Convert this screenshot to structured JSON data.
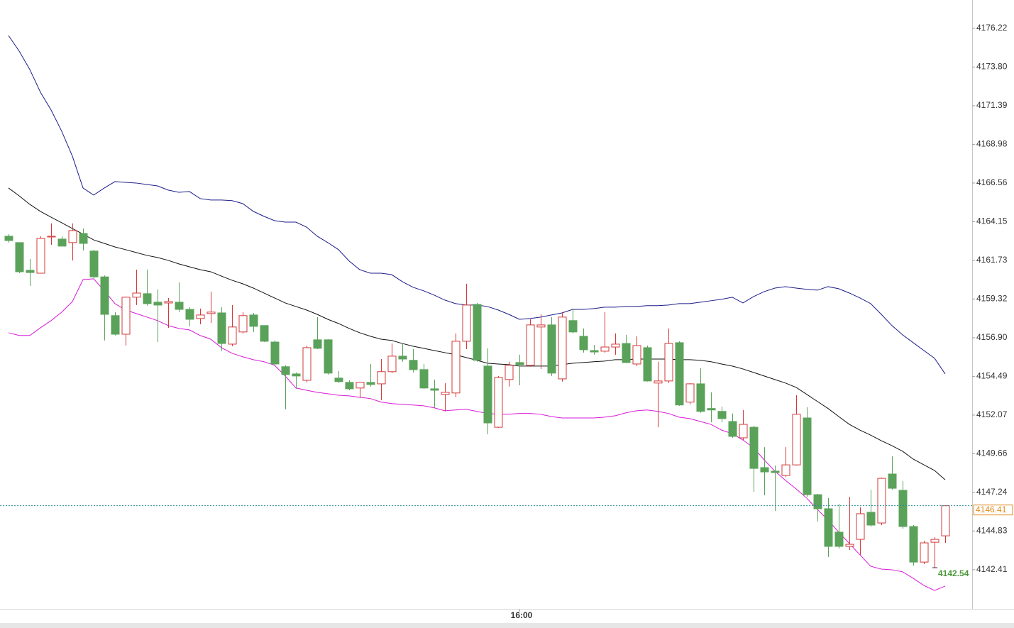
{
  "chart_data": {
    "type": "candlestick",
    "up_color": "#d23a3a",
    "down_color": "#5aa25a",
    "last_price_color": "#e08a1e",
    "last_line_color": "#2a8a9a",
    "low_label_color": "#4a9a3a",
    "ylim": [
      4139.97,
      4177.99
    ],
    "yticks": [
      4142.41,
      4144.83,
      4147.24,
      4149.66,
      4152.07,
      4154.49,
      {
        "value": 4156.9,
        "label": "4156.90"
      },
      4159.32,
      4161.73,
      4164.15,
      4166.56,
      4168.98,
      4171.39,
      {
        "value": 4173.8,
        "label": "4173.80"
      },
      4176.22
    ],
    "categories": [
      null,
      null,
      null,
      null,
      null,
      null,
      null,
      null,
      null,
      null,
      null,
      null,
      null,
      null,
      null,
      null,
      null,
      null,
      null,
      null,
      null,
      null,
      null,
      null,
      null,
      null,
      null,
      null,
      null,
      null,
      null,
      null,
      null,
      null,
      null,
      null,
      null,
      null,
      null,
      null,
      null,
      null,
      null,
      null,
      null,
      null,
      null,
      null,
      "16:00",
      null,
      null,
      null,
      null,
      null,
      null,
      null,
      null,
      null,
      null,
      null,
      null,
      null,
      null,
      null,
      null,
      null,
      null,
      null,
      null,
      null,
      null,
      null,
      null,
      null,
      null,
      null,
      null,
      null,
      null,
      null,
      null,
      null,
      null,
      null,
      null,
      null,
      null,
      null,
      null
    ],
    "open": [
      4163.24,
      4162.84,
      4161.11,
      4160.93,
      4163.19,
      4163.06,
      4162.84,
      4163.41,
      4162.31,
      4160.7,
      4158.28,
      4157.12,
      4159.43,
      4159.65,
      4159.12,
      4159.07,
      4159.12,
      4158.67,
      4158.1,
      4158.41,
      4158.45,
      4156.5,
      4157.26,
      4158.32,
      4157.66,
      4156.63,
      4155.09,
      4154.64,
      4154.24,
      4156.77,
      4156.77,
      4154.38,
      4154.11,
      4153.76,
      4154.11,
      4154.02,
      4154.78,
      4155.75,
      4155.49,
      4154.91,
      4153.71,
      4153.36,
      4153.45,
      4156.68,
      4158.98,
      4155.13,
      4151.31,
      4154.29,
      4155.35,
      4155.18,
      4157.57,
      4157.7,
      4154.33,
      4157.97,
      4156.99,
      4156.1,
      4156.06,
      4156.32,
      4156.54,
      4155.26,
      4156.28,
      4154.07,
      4154.2,
      4156.59,
      4152.88,
      4154.02,
      4152.48,
      4152.3,
      4151.67,
      4150.65,
      4151.31,
      4148.79,
      4148.57,
      4148.3,
      4148.96,
      4151.89,
      4147.1,
      4146.22,
      4144.76,
      4143.87,
      4144.31,
      4146.0,
      4145.33,
      4148.39,
      4147.37,
      4145.11,
      4142.89,
      4144.13,
      4144.53
    ],
    "high": [
      4163.37,
      4162.84,
      4161.82,
      4163.24,
      4164.04,
      4163.24,
      4164.04,
      4163.72,
      4162.4,
      4160.79,
      4158.5,
      4159.47,
      4161.15,
      4161.15,
      4159.92,
      4159.38,
      4160.36,
      4158.81,
      4158.72,
      4159.78,
      4158.81,
      4158.94,
      4158.5,
      4158.45,
      4157.66,
      4156.73,
      4155.18,
      4154.73,
      4156.41,
      4158.19,
      4156.81,
      4154.82,
      4154.24,
      4154.11,
      4155.26,
      4155.57,
      4156.54,
      4156.5,
      4156.19,
      4155.26,
      4154.29,
      4154.07,
      4157.17,
      4160.27,
      4159.07,
      4156.24,
      4154.51,
      4155.4,
      4155.84,
      4158.05,
      4158.36,
      4158.19,
      4158.5,
      4158.72,
      4157.48,
      4156.45,
      4158.5,
      4157.17,
      4157.08,
      4156.99,
      4156.41,
      4155.4,
      4157.48,
      4156.68,
      4154.07,
      4155.0,
      4153.49,
      4152.61,
      4152.17,
      4152.39,
      4151.4,
      4150.07,
      4148.92,
      4150.07,
      4153.31,
      4152.56,
      4147.15,
      4146.88,
      4146.53,
      4146.97,
      4146.31,
      4147.41,
      4148.17,
      4149.49,
      4147.94,
      4145.2,
      4144.22,
      4144.44,
      4146.44
    ],
    "low": [
      4162.84,
      4160.93,
      4160.14,
      4160.93,
      4162.7,
      4162.62,
      4161.72,
      4162.35,
      4160.62,
      4156.73,
      4157.04,
      4156.41,
      4158.94,
      4158.9,
      4156.63,
      4157.52,
      4158.5,
      4157.61,
      4157.74,
      4157.83,
      4156.06,
      4156.37,
      4157.17,
      4157.26,
      4156.63,
      4155.18,
      4152.43,
      4153.71,
      4154.11,
      4156.19,
      4154.6,
      4154.07,
      4153.62,
      4153.14,
      4153.85,
      4153.0,
      4154.69,
      4155.4,
      4154.73,
      4153.71,
      4152.52,
      4152.3,
      4153.18,
      4156.19,
      4155.4,
      4150.87,
      4151.27,
      4153.85,
      4153.93,
      4155.09,
      4154.95,
      4154.51,
      4154.16,
      4157.17,
      4155.97,
      4155.84,
      4155.97,
      4155.84,
      4155.31,
      4155.13,
      4154.16,
      4151.31,
      4154.07,
      4152.65,
      4152.74,
      4152.21,
      4151.62,
      4151.62,
      4150.65,
      4150.51,
      4147.28,
      4147.06,
      4146.08,
      4148.21,
      4148.92,
      4146.97,
      4145.42,
      4143.21,
      4143.74,
      4143.65,
      4143.34,
      4145.11,
      4145.2,
      4147.41,
      4144.98,
      4142.67,
      4142.76,
      4142.54,
      4144.09
    ],
    "close": [
      4162.97,
      4161.02,
      4160.97,
      4163.1,
      4163.24,
      4162.62,
      4163.59,
      4162.79,
      4160.7,
      4158.36,
      4157.12,
      4159.43,
      4159.69,
      4159.03,
      4158.94,
      4159.16,
      4158.67,
      4158.05,
      4158.32,
      4158.5,
      4156.54,
      4157.57,
      4158.28,
      4157.61,
      4156.68,
      4155.26,
      4154.6,
      4154.51,
      4156.28,
      4156.24,
      4154.69,
      4154.16,
      4153.71,
      4154.11,
      4153.98,
      4154.78,
      4155.75,
      4155.57,
      4154.91,
      4153.76,
      4153.62,
      4153.49,
      4156.68,
      4158.94,
      4155.49,
      4151.58,
      4154.42,
      4155.18,
      4155.22,
      4157.7,
      4157.7,
      4154.69,
      4158.19,
      4157.26,
      4156.15,
      4156.01,
      4156.32,
      4156.5,
      4155.35,
      4156.41,
      4154.2,
      4154.2,
      4156.54,
      4152.7,
      4154.02,
      4152.3,
      4152.39,
      4151.85,
      4150.74,
      4151.49,
      4148.74,
      4148.52,
      4148.48,
      4148.96,
      4152.12,
      4147.1,
      4146.22,
      4143.87,
      4143.87,
      4144.0,
      4145.91,
      4145.2,
      4148.12,
      4147.5,
      4145.11,
      4142.89,
      4144.09,
      4144.31,
      4146.41
    ],
    "lines": [
      {
        "color": "#1c1c8a",
        "values": [
          4175.77,
          4174.8,
          4173.65,
          4172.23,
          4171.12,
          4169.79,
          4168.24,
          4166.25,
          4165.81,
          4166.25,
          4166.65,
          4166.6,
          4166.56,
          4166.47,
          4166.38,
          4166.12,
          4165.98,
          4166.03,
          4165.59,
          4165.5,
          4165.5,
          4165.46,
          4165.28,
          4164.79,
          4164.48,
          4164.21,
          4164.12,
          4164.12,
          4163.81,
          4163.24,
          4162.84,
          4162.4,
          4161.69,
          4161.15,
          4160.93,
          4160.93,
          4160.84,
          4160.4,
          4160.05,
          4159.83,
          4159.56,
          4159.25,
          4159.03,
          4158.94,
          4158.94,
          4158.85,
          4158.63,
          4158.36,
          4158.05,
          4158.1,
          4158.19,
          4158.32,
          4158.45,
          4158.67,
          4158.67,
          4158.72,
          4158.81,
          4158.81,
          4158.85,
          4158.85,
          4158.9,
          4158.9,
          4158.94,
          4159.03,
          4159.03,
          4159.12,
          4159.21,
          4159.3,
          4159.43,
          4159.07,
          4159.47,
          4159.78,
          4160.0,
          4160.09,
          4160.0,
          4159.92,
          4159.87,
          4160.09,
          4159.96,
          4159.69,
          4159.38,
          4159.03,
          4158.36,
          4157.66,
          4157.08,
          4156.59,
          4156.1,
          4155.62,
          4154.64
        ]
      },
      {
        "color": "#111111",
        "values": [
          4166.25,
          4165.76,
          4165.23,
          4164.79,
          4164.43,
          4164.08,
          4163.72,
          4163.37,
          4163.01,
          4162.79,
          4162.57,
          4162.4,
          4162.22,
          4162.04,
          4161.91,
          4161.73,
          4161.51,
          4161.33,
          4161.15,
          4161.02,
          4160.75,
          4160.49,
          4160.27,
          4160.0,
          4159.69,
          4159.38,
          4159.07,
          4158.85,
          4158.63,
          4158.36,
          4158.05,
          4157.79,
          4157.48,
          4157.21,
          4156.99,
          4156.81,
          4156.73,
          4156.54,
          4156.37,
          4156.24,
          4156.1,
          4155.97,
          4155.84,
          4155.66,
          4155.49,
          4155.31,
          4155.26,
          4155.22,
          4155.13,
          4155.13,
          4155.13,
          4155.13,
          4155.22,
          4155.31,
          4155.35,
          4155.4,
          4155.44,
          4155.53,
          4155.53,
          4155.57,
          4155.57,
          4155.57,
          4155.57,
          4155.53,
          4155.53,
          4155.49,
          4155.4,
          4155.26,
          4155.13,
          4154.95,
          4154.73,
          4154.51,
          4154.29,
          4154.07,
          4153.8,
          4153.36,
          4152.92,
          4152.48,
          4151.98,
          4151.49,
          4151.13,
          4150.82,
          4150.47,
          4150.16,
          4149.81,
          4149.32,
          4148.96,
          4148.61,
          4148.03
        ]
      },
      {
        "color": "#d81ad8",
        "values": [
          4157.21,
          4157.04,
          4157.04,
          4157.52,
          4157.97,
          4158.5,
          4159.16,
          4160.53,
          4160.58,
          4159.83,
          4159.03,
          4158.63,
          4158.41,
          4158.19,
          4157.97,
          4157.66,
          4157.48,
          4157.39,
          4157.04,
          4156.81,
          4156.28,
          4155.93,
          4155.71,
          4155.53,
          4155.4,
          4155.18,
          4154.51,
          4153.76,
          4153.62,
          4153.49,
          4153.4,
          4153.31,
          4153.27,
          4153.18,
          4153.1,
          4152.88,
          4152.79,
          4152.74,
          4152.7,
          4152.65,
          4152.52,
          4152.34,
          4152.39,
          4152.43,
          4152.3,
          4152.17,
          4152.12,
          4152.12,
          4152.17,
          4152.17,
          4152.12,
          4151.98,
          4151.89,
          4151.89,
          4151.89,
          4151.89,
          4151.94,
          4152.03,
          4152.21,
          4152.34,
          4152.39,
          4152.3,
          4152.17,
          4151.94,
          4151.85,
          4151.67,
          4151.49,
          4151.13,
          4150.91,
          4150.51,
          4150.03,
          4149.27,
          4148.57,
          4147.99,
          4147.46,
          4146.88,
          4146.17,
          4145.51,
          4144.76,
          4144.05,
          4143.34,
          4142.63,
          4142.45,
          4142.41,
          4142.28,
          4141.88,
          4141.43,
          4141.12,
          4141.39
        ]
      }
    ]
  }
}
